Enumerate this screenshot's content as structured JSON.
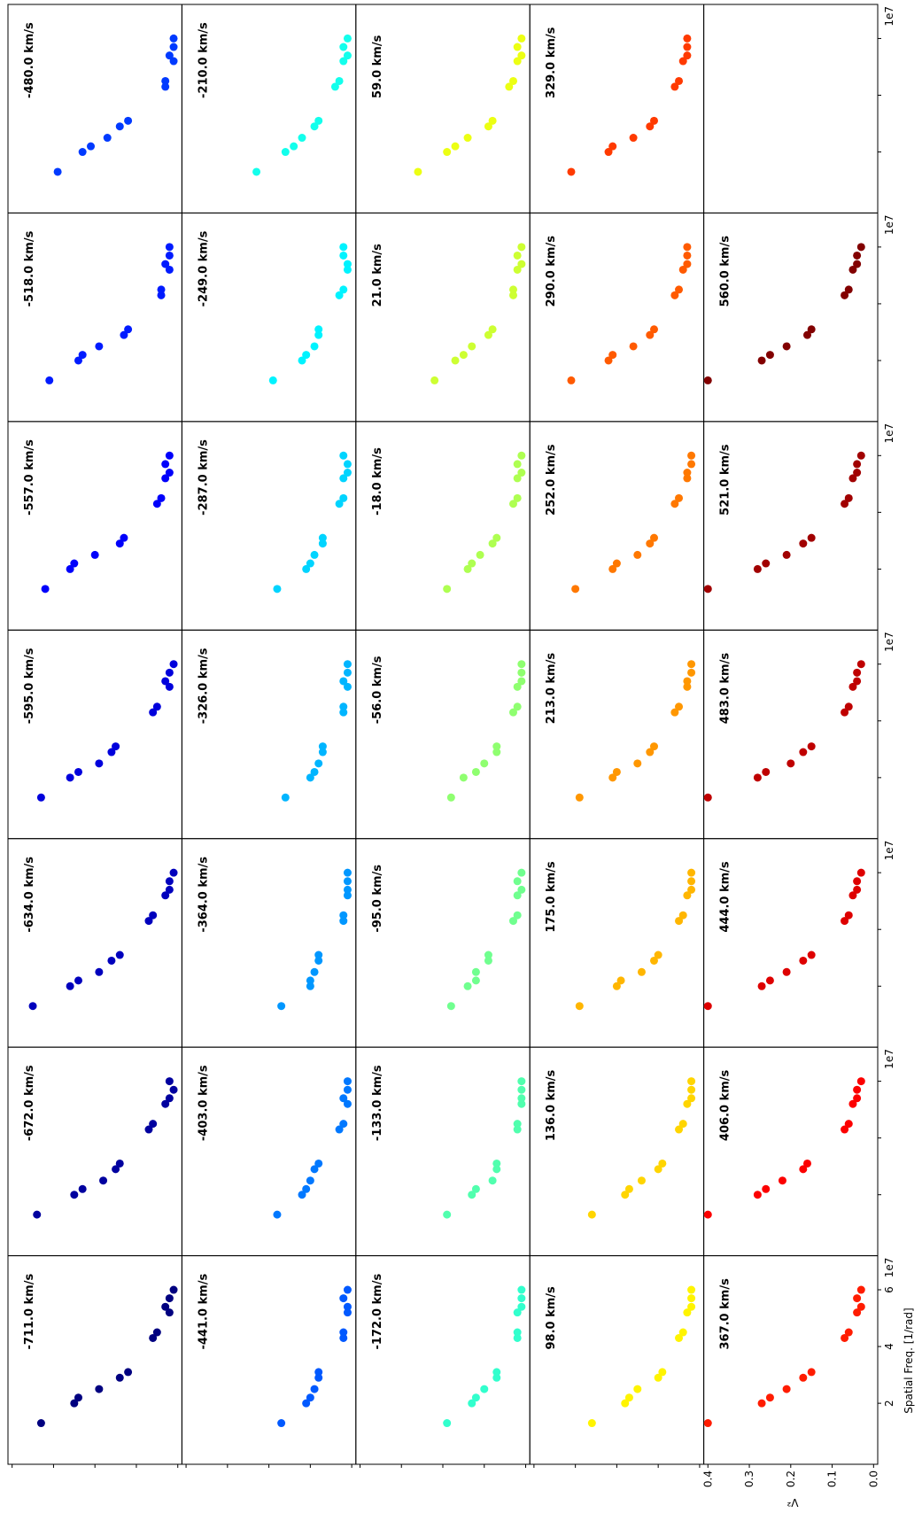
{
  "chart_data": {
    "type": "scatter",
    "x_label": "Spatial Freq. [1/rad]",
    "y_label": "V²",
    "x_offset": "1e7",
    "x": [
      1.3,
      2.0,
      2.2,
      2.5,
      2.9,
      3.1,
      4.3,
      4.5,
      5.2,
      5.4,
      5.7,
      6.0
    ],
    "xlim": [
      -0.15,
      7.2
    ],
    "xticks": [
      2,
      4,
      6
    ],
    "ylim": [
      -0.01,
      0.41
    ],
    "yticks": [
      {
        "value": 0,
        "label": "0.0"
      },
      0.1,
      0.2,
      0.3,
      0.4
    ],
    "series": [
      {
        "name": "-711.0 km/s",
        "color": "#000080",
        "values": [
          0.33,
          0.25,
          0.24,
          0.19,
          0.14,
          0.12,
          0.06,
          0.05,
          0.02,
          0.03,
          0.02,
          0.01
        ]
      },
      {
        "name": "-672.0 km/s",
        "color": "#00009f",
        "values": [
          0.34,
          0.25,
          0.23,
          0.18,
          0.15,
          0.14,
          0.07,
          0.06,
          0.03,
          0.02,
          0.01,
          0.02
        ]
      },
      {
        "name": "-634.0 km/s",
        "color": "#0000bd",
        "values": [
          0.35,
          0.26,
          0.24,
          0.19,
          0.16,
          0.14,
          0.07,
          0.06,
          0.03,
          0.02,
          0.02,
          0.01
        ]
      },
      {
        "name": "-595.0 km/s",
        "color": "#0000dc",
        "values": [
          0.33,
          0.26,
          0.24,
          0.19,
          0.16,
          0.15,
          0.06,
          0.05,
          0.02,
          0.03,
          0.02,
          0.01
        ]
      },
      {
        "name": "-557.0 km/s",
        "color": "#0000fb",
        "values": [
          0.32,
          0.26,
          0.25,
          0.2,
          0.14,
          0.13,
          0.05,
          0.04,
          0.03,
          0.02,
          0.03,
          0.02
        ]
      },
      {
        "name": "-518.0 km/s",
        "color": "#001bff",
        "values": [
          0.31,
          0.24,
          0.23,
          0.19,
          0.13,
          0.12,
          0.04,
          0.04,
          0.02,
          0.03,
          0.02,
          0.02
        ]
      },
      {
        "name": "-480.0 km/s",
        "color": "#003aff",
        "values": [
          0.29,
          0.23,
          0.21,
          0.17,
          0.14,
          0.12,
          0.03,
          0.03,
          0.01,
          0.02,
          0.01,
          0.01
        ]
      },
      {
        "name": "-441.0 km/s",
        "color": "#0059ff",
        "values": [
          0.17,
          0.11,
          0.1,
          0.09,
          0.08,
          0.08,
          0.02,
          0.02,
          0.01,
          0.01,
          0.02,
          0.01
        ]
      },
      {
        "name": "-403.0 km/s",
        "color": "#0078ff",
        "values": [
          0.18,
          0.12,
          0.11,
          0.1,
          0.09,
          0.08,
          0.03,
          0.02,
          0.01,
          0.02,
          0.01,
          0.01
        ]
      },
      {
        "name": "-364.0 km/s",
        "color": "#0097ff",
        "values": [
          0.17,
          0.1,
          0.1,
          0.09,
          0.08,
          0.08,
          0.02,
          0.02,
          0.01,
          0.01,
          0.01,
          0.01
        ]
      },
      {
        "name": "-326.0 km/s",
        "color": "#00b5ff",
        "values": [
          0.16,
          0.1,
          0.09,
          0.08,
          0.07,
          0.07,
          0.02,
          0.02,
          0.01,
          0.02,
          0.01,
          0.01
        ]
      },
      {
        "name": "-287.0 km/s",
        "color": "#00d4ff",
        "values": [
          0.18,
          0.11,
          0.1,
          0.09,
          0.07,
          0.07,
          0.03,
          0.02,
          0.02,
          0.01,
          0.01,
          0.02
        ]
      },
      {
        "name": "-249.0 km/s",
        "color": "#00f3ff",
        "values": [
          0.19,
          0.12,
          0.11,
          0.09,
          0.08,
          0.08,
          0.03,
          0.02,
          0.01,
          0.01,
          0.02,
          0.02
        ]
      },
      {
        "name": "-210.0 km/s",
        "color": "#13ffec",
        "values": [
          0.23,
          0.16,
          0.14,
          0.12,
          0.09,
          0.08,
          0.04,
          0.03,
          0.02,
          0.01,
          0.02,
          0.01
        ]
      },
      {
        "name": "-172.0 km/s",
        "color": "#32ffcd",
        "values": [
          0.19,
          0.13,
          0.12,
          0.1,
          0.07,
          0.07,
          0.02,
          0.02,
          0.02,
          0.01,
          0.01,
          0.01
        ]
      },
      {
        "name": "-133.0 km/s",
        "color": "#51ffae",
        "values": [
          0.19,
          0.13,
          0.12,
          0.08,
          0.07,
          0.07,
          0.02,
          0.02,
          0.01,
          0.01,
          0.01,
          0.01
        ]
      },
      {
        "name": "-95.0 km/s",
        "color": "#70ff8f",
        "values": [
          0.18,
          0.14,
          0.12,
          0.12,
          0.09,
          0.09,
          0.03,
          0.02,
          0.02,
          0.01,
          0.02,
          0.01
        ]
      },
      {
        "name": "-56.0 km/s",
        "color": "#8fff70",
        "values": [
          0.18,
          0.15,
          0.12,
          0.1,
          0.07,
          0.07,
          0.03,
          0.02,
          0.02,
          0.01,
          0.01,
          0.01
        ]
      },
      {
        "name": "-18.0 km/s",
        "color": "#aeff51",
        "values": [
          0.19,
          0.14,
          0.13,
          0.11,
          0.08,
          0.07,
          0.03,
          0.02,
          0.02,
          0.01,
          0.02,
          0.01
        ]
      },
      {
        "name": "21.0 km/s",
        "color": "#cdff32",
        "values": [
          0.22,
          0.17,
          0.15,
          0.13,
          0.09,
          0.08,
          0.03,
          0.03,
          0.02,
          0.01,
          0.02,
          0.01
        ]
      },
      {
        "name": "59.0 km/s",
        "color": "#ecff13",
        "values": [
          0.26,
          0.19,
          0.17,
          0.14,
          0.09,
          0.08,
          0.04,
          0.03,
          0.02,
          0.01,
          0.02,
          0.01
        ]
      },
      {
        "name": "98.0 km/s",
        "color": "#fff400",
        "values": [
          0.26,
          0.18,
          0.17,
          0.15,
          0.1,
          0.09,
          0.05,
          0.04,
          0.03,
          0.02,
          0.02,
          0.02
        ]
      },
      {
        "name": "136.0 km/s",
        "color": "#ffd500",
        "values": [
          0.26,
          0.18,
          0.17,
          0.14,
          0.1,
          0.09,
          0.05,
          0.04,
          0.03,
          0.02,
          0.02,
          0.02
        ]
      },
      {
        "name": "175.0 km/s",
        "color": "#ffb600",
        "values": [
          0.29,
          0.2,
          0.19,
          0.14,
          0.11,
          0.1,
          0.05,
          0.04,
          0.03,
          0.02,
          0.02,
          0.02
        ]
      },
      {
        "name": "213.0 km/s",
        "color": "#ff9700",
        "values": [
          0.29,
          0.21,
          0.2,
          0.15,
          0.12,
          0.11,
          0.06,
          0.05,
          0.03,
          0.03,
          0.02,
          0.02
        ]
      },
      {
        "name": "252.0 km/s",
        "color": "#ff7800",
        "values": [
          0.3,
          0.21,
          0.2,
          0.15,
          0.12,
          0.11,
          0.06,
          0.05,
          0.03,
          0.03,
          0.02,
          0.02
        ]
      },
      {
        "name": "290.0 km/s",
        "color": "#ff5a00",
        "values": [
          0.31,
          0.22,
          0.21,
          0.16,
          0.12,
          0.11,
          0.06,
          0.05,
          0.04,
          0.03,
          0.03,
          0.03
        ]
      },
      {
        "name": "329.0 km/s",
        "color": "#ff3a00",
        "values": [
          0.31,
          0.22,
          0.21,
          0.16,
          0.12,
          0.11,
          0.06,
          0.05,
          0.04,
          0.03,
          0.03,
          0.03
        ]
      },
      {
        "name": "367.0 km/s",
        "color": "#ff1c00",
        "values": [
          0.4,
          0.27,
          0.25,
          0.21,
          0.17,
          0.15,
          0.07,
          0.06,
          0.04,
          0.03,
          0.04,
          0.03
        ]
      },
      {
        "name": "406.0 km/s",
        "color": "#fc0000",
        "values": [
          0.4,
          0.28,
          0.26,
          0.22,
          0.17,
          0.16,
          0.07,
          0.06,
          0.05,
          0.04,
          0.04,
          0.03
        ]
      },
      {
        "name": "444.0 km/s",
        "color": "#de0000",
        "values": [
          0.4,
          0.27,
          0.25,
          0.21,
          0.17,
          0.15,
          0.07,
          0.06,
          0.05,
          0.04,
          0.04,
          0.03
        ]
      },
      {
        "name": "483.0 km/s",
        "color": "#bf0000",
        "values": [
          0.4,
          0.28,
          0.26,
          0.2,
          0.17,
          0.15,
          0.07,
          0.06,
          0.05,
          0.04,
          0.04,
          0.03
        ]
      },
      {
        "name": "521.0 km/s",
        "color": "#a10000",
        "values": [
          0.4,
          0.28,
          0.26,
          0.21,
          0.17,
          0.15,
          0.07,
          0.06,
          0.05,
          0.04,
          0.04,
          0.03
        ]
      },
      {
        "name": "560.0 km/s",
        "color": "#820000",
        "values": [
          0.4,
          0.27,
          0.25,
          0.21,
          0.16,
          0.15,
          0.07,
          0.06,
          0.05,
          0.04,
          0.04,
          0.03
        ]
      }
    ]
  }
}
